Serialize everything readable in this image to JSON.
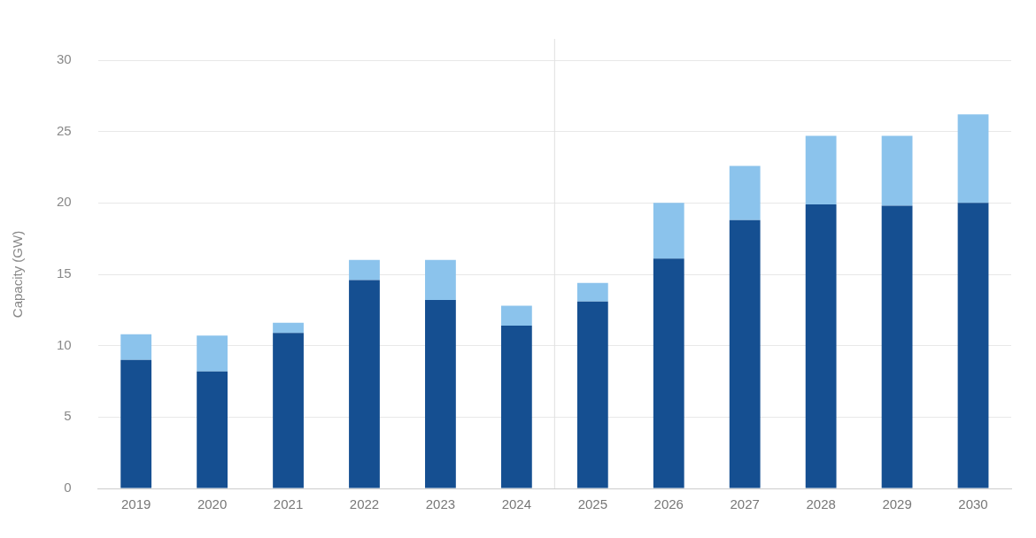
{
  "chart_data": {
    "type": "bar",
    "stacked": true,
    "ylabel": "Capacity (GW)",
    "categories": [
      "2019",
      "2020",
      "2021",
      "2022",
      "2023",
      "2024",
      "2025",
      "2026",
      "2027",
      "2028",
      "2029",
      "2030"
    ],
    "series": [
      {
        "color": "#154f91",
        "values": [
          9.0,
          8.2,
          10.9,
          14.6,
          13.2,
          11.4,
          13.1,
          16.1,
          18.8,
          19.9,
          19.8,
          20.0
        ]
      },
      {
        "color": "#8bc3ec",
        "values": [
          1.8,
          2.5,
          0.7,
          1.4,
          2.8,
          1.4,
          1.3,
          3.9,
          3.8,
          4.8,
          4.9,
          6.2
        ]
      }
    ],
    "ylim": [
      0,
      30
    ],
    "yticks": [
      0,
      5,
      10,
      15,
      20,
      25,
      30
    ],
    "grid": "y",
    "legend": false,
    "ref_lines": [
      {
        "axis": "x",
        "value": "2025",
        "color": "#e0e0e0"
      }
    ]
  }
}
